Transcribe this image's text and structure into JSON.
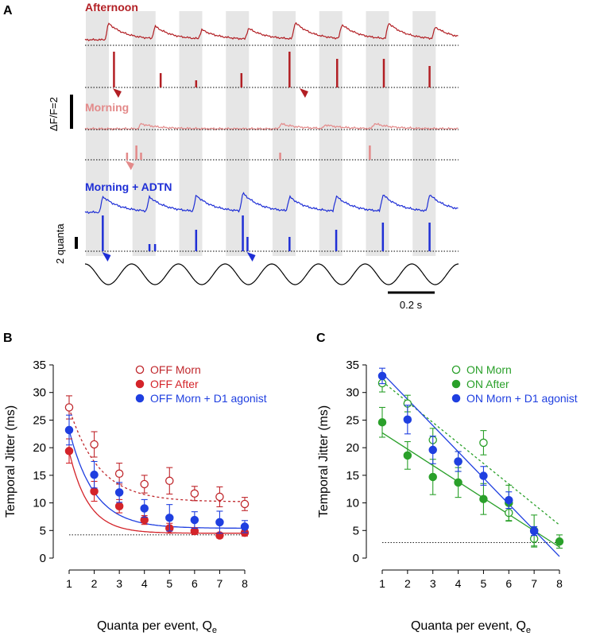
{
  "panel_a": {
    "panel_label": "A",
    "labels": {
      "afternoon": "Afternoon",
      "morning": "Morning",
      "morning_adtn": "Morning  + ADTN"
    },
    "scale_bars": {
      "dff": "ΔF/F=2",
      "quanta": "2 quanta",
      "time": "0.2 s"
    },
    "colors": {
      "afternoon": "#b21f24",
      "morning": "#e38a8a",
      "adtn": "#1f2fd6",
      "stimulus": "#000000",
      "shading": "#e6e6e6"
    },
    "cycles": 8,
    "event_quanta": {
      "afternoon": [
        [
          0.62,
          5
        ],
        [
          1.62,
          2
        ],
        [
          2.38,
          1
        ],
        [
          3.35,
          2
        ],
        [
          4.38,
          5
        ],
        [
          5.4,
          4
        ],
        [
          6.4,
          4
        ],
        [
          7.38,
          3
        ]
      ],
      "morning": [
        [
          0.9,
          1
        ],
        [
          1.1,
          2
        ],
        [
          1.2,
          1
        ],
        [
          4.18,
          1
        ],
        [
          6.1,
          2
        ]
      ],
      "adtn": [
        [
          0.38,
          5
        ],
        [
          1.38,
          1
        ],
        [
          1.5,
          1
        ],
        [
          2.38,
          3
        ],
        [
          3.38,
          5
        ],
        [
          3.48,
          2
        ],
        [
          4.38,
          2
        ],
        [
          5.38,
          3
        ],
        [
          6.38,
          4
        ],
        [
          7.38,
          4
        ]
      ]
    },
    "arrowheads": {
      "afternoon": [
        0.68,
        4.68
      ],
      "morning": [
        0.95
      ],
      "adtn": [
        0.45,
        3.55
      ]
    }
  },
  "chart_data": [
    {
      "panel_label": "B",
      "type": "scatter",
      "xlabel": "Quanta per event, Q",
      "xlabel_subscript": "e",
      "ylabel": "Temporal Jitter (ms)",
      "xlim": [
        1,
        8
      ],
      "ylim": [
        0,
        35
      ],
      "xticks": [
        1,
        2,
        3,
        4,
        5,
        6,
        7,
        8
      ],
      "yticks": [
        0,
        5,
        10,
        15,
        20,
        25,
        30,
        35
      ],
      "legend_position": "top-right",
      "baseline": 4.2,
      "x": [
        1,
        2,
        3,
        4,
        5,
        6,
        7,
        8
      ],
      "series": [
        {
          "name": "OFF Morn",
          "marker": "open-circle",
          "color": "#c0282d",
          "fit": "dashed",
          "fit_params": {
            "a": 10.2,
            "b": 17,
            "c": 0.85
          },
          "values": [
            27.3,
            20.6,
            15.3,
            13.4,
            14.0,
            11.7,
            11.1,
            9.8
          ],
          "errors": [
            2.1,
            2.3,
            1.9,
            1.6,
            2.4,
            1.3,
            1.8,
            1.2
          ]
        },
        {
          "name": "OFF After",
          "marker": "filled-circle",
          "color": "#d4242a",
          "fit": "solid",
          "fit_params": {
            "a": 4.5,
            "b": 14.8,
            "c": 1.3
          },
          "values": [
            19.4,
            12.1,
            9.4,
            6.9,
            5.4,
            4.9,
            4.1,
            4.6
          ],
          "errors": [
            2.2,
            1.8,
            1.2,
            0.8,
            0.9,
            0.6,
            0.5,
            0.6
          ]
        },
        {
          "name": "OFF Morn + D1 agonist",
          "marker": "filled-circle",
          "color": "#1f3fe0",
          "fit": "solid",
          "fit_params": {
            "a": 5.4,
            "b": 17.8,
            "c": 1.0
          },
          "values": [
            23.2,
            15.1,
            11.9,
            9.0,
            7.3,
            6.9,
            6.5,
            5.7
          ],
          "errors": [
            2.7,
            2.4,
            1.8,
            1.6,
            2.4,
            1.5,
            2.0,
            1.1
          ]
        }
      ]
    },
    {
      "panel_label": "C",
      "type": "scatter",
      "xlabel": "Quanta per event, Q",
      "xlabel_subscript": "e",
      "ylabel": "Temporal Jitter (ms)",
      "xlim": [
        1,
        8
      ],
      "ylim": [
        0,
        35
      ],
      "xticks": [
        1,
        2,
        3,
        4,
        5,
        6,
        7,
        8
      ],
      "yticks": [
        0,
        5,
        10,
        15,
        20,
        25,
        30,
        35
      ],
      "legend_position": "top-right",
      "baseline": 2.8,
      "x": [
        1,
        2,
        3,
        4,
        5,
        6,
        7,
        8
      ],
      "series": [
        {
          "name": "ON Morn",
          "marker": "open-circle",
          "color": "#2aa02a",
          "fit": "dashed-line",
          "fit_line": [
            [
              1,
              32
            ],
            [
              8,
              6
            ]
          ],
          "values": [
            31.7,
            28.0,
            21.4,
            17.5,
            20.9,
            8.2,
            3.5,
            null
          ],
          "errors": [
            1.6,
            1.5,
            2.1,
            1.8,
            2.2,
            1.5,
            1.5,
            null
          ]
        },
        {
          "name": "ON After",
          "marker": "filled-circle",
          "color": "#2aa02a",
          "fit": "solid-line",
          "fit_line": [
            [
              1,
              22.7
            ],
            [
              8,
              2.0
            ]
          ],
          "values": [
            24.6,
            18.6,
            14.7,
            13.7,
            10.7,
            10.0,
            5.0,
            3.0
          ],
          "errors": [
            2.7,
            2.5,
            3.2,
            2.7,
            2.8,
            3.2,
            2.8,
            1.2
          ]
        },
        {
          "name": "ON Morn + D1 agonist",
          "marker": "filled-circle",
          "color": "#1f3fe0",
          "fit": "solid-line",
          "fit_line": [
            [
              1,
              33.5
            ],
            [
              8,
              0.3
            ]
          ],
          "values": [
            33.0,
            25.1,
            19.6,
            17.5,
            14.9,
            10.5,
            4.9,
            null
          ],
          "errors": [
            1.4,
            2.6,
            2.5,
            1.8,
            1.7,
            1.5,
            0.8,
            null
          ]
        }
      ]
    }
  ]
}
